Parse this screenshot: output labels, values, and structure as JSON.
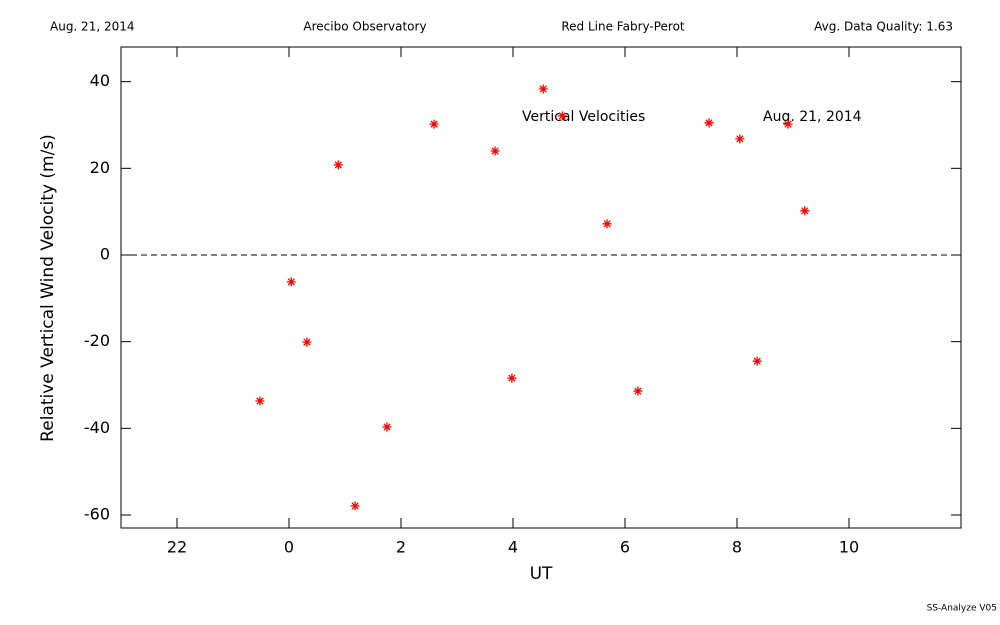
{
  "chart_data": {
    "type": "scatter",
    "header": [
      "Aug. 21, 2014",
      "Arecibo Observatory",
      "Red Line Fabry-Perot",
      "Avg. Data Quality: 1.63"
    ],
    "annotations": [
      "Vertical Velocities",
      "Aug. 21, 2014"
    ],
    "footer": "SS-Analyze V05",
    "x_label": "UT",
    "y_label": "Relative Vertical Wind Velocity (m/s)",
    "xlim": [
      -3,
      12
    ],
    "xticks": [
      {
        "value": -2,
        "label": "22"
      },
      0,
      2,
      4,
      6,
      8,
      10
    ],
    "ylim": [
      -63,
      48
    ],
    "yticks": [
      -60,
      -40,
      -20,
      0,
      20,
      40
    ],
    "reference_line": 0,
    "color": "#ff0000",
    "x": [
      -0.52,
      0.04,
      0.32,
      0.88,
      1.18,
      1.75,
      2.59,
      3.68,
      3.98,
      4.54,
      4.88,
      5.68,
      6.23,
      7.5,
      8.05,
      8.36,
      8.91,
      9.21
    ],
    "values": [
      -33.7,
      -6.2,
      -20.1,
      20.8,
      -57.9,
      -39.7,
      30.2,
      24.0,
      -28.4,
      38.3,
      32.1,
      7.2,
      -31.4,
      30.5,
      26.8,
      -24.5,
      30.2,
      10.2
    ]
  }
}
